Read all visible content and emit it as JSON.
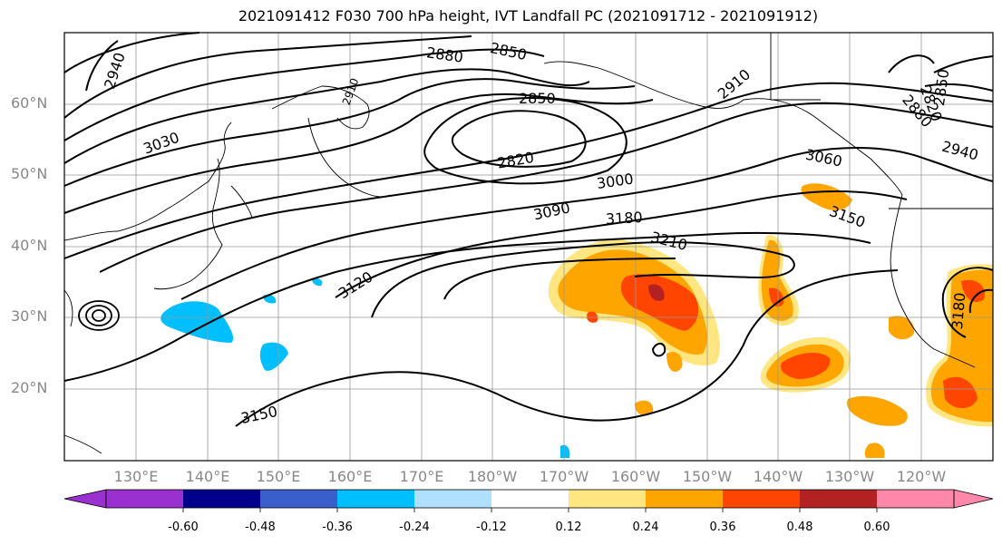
{
  "title": "2021091412 F030 700 hPa height, IVT Landfall PC (2021091712 - 2021091912)",
  "lat_labels": [
    "60°N",
    "50°N",
    "40°N",
    "30°N",
    "20°N"
  ],
  "lon_labels": [
    "130°E",
    "140°E",
    "150°E",
    "160°E",
    "170°E",
    "180°W",
    "170°W",
    "160°W",
    "150°W",
    "140°W",
    "130°W",
    "120°W"
  ],
  "contour_labels": [
    "2940",
    "2880",
    "2850",
    "2850",
    "2910",
    "2850",
    "2820",
    "3030",
    "2820",
    "2880",
    "2940",
    "3060",
    "3000",
    "3090",
    "3180",
    "3150",
    "3210",
    "3120",
    "3180",
    "3150",
    "2910"
  ],
  "colorbar": {
    "tick_labels": [
      "-0.60",
      "-0.48",
      "-0.36",
      "-0.24",
      "-0.12",
      "0.12",
      "0.24",
      "0.36",
      "0.48",
      "0.60"
    ],
    "colors": [
      "#9b30d0",
      "#00008b",
      "#3a5fcd",
      "#00bfff",
      "#b0e0ff",
      "#ffffff",
      "#ffe680",
      "#ffa500",
      "#ff4500",
      "#b22222",
      "#ff88aa"
    ]
  }
}
